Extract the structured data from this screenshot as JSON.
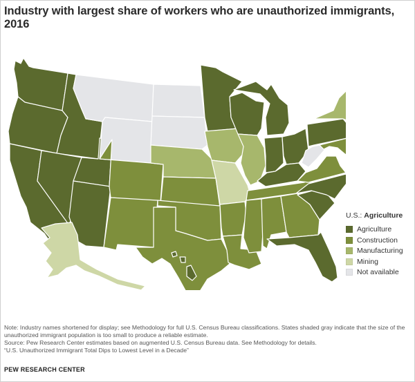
{
  "title": "Industry with largest share of workers who are unauthorized immigrants, 2016",
  "legend": {
    "header_prefix": "U.S.: ",
    "header_value": "Agriculture",
    "items": [
      {
        "label": "Agriculture",
        "color": "#5b6a2e"
      },
      {
        "label": "Construction",
        "color": "#7e8f3c"
      },
      {
        "label": "Manufacturing",
        "color": "#a7b76c"
      },
      {
        "label": "Mining",
        "color": "#ced7a6"
      },
      {
        "label": "Not available",
        "color": "#e4e5e8"
      }
    ]
  },
  "states": {
    "WA": "Agriculture",
    "OR": "Agriculture",
    "CA": "Agriculture",
    "ID": "Agriculture",
    "NV": "Agriculture",
    "UT": "Agriculture",
    "AZ": "Agriculture",
    "MT": "Not available",
    "WY": "Not available",
    "ND": "Not available",
    "SD": "Not available",
    "CO": "Construction",
    "NM": "Construction",
    "NE": "Manufacturing",
    "KS": "Construction",
    "OK": "Construction",
    "TX": "Construction",
    "MN": "Agriculture",
    "IA": "Manufacturing",
    "MO": "Mining",
    "AR": "Construction",
    "LA": "Construction",
    "WI": "Agriculture",
    "IL": "Manufacturing",
    "MI": "Agriculture",
    "IN": "Agriculture",
    "OH": "Agriculture",
    "KY": "Agriculture",
    "TN": "Construction",
    "MS": "Construction",
    "AL": "Construction",
    "GA": "Construction",
    "FL": "Agriculture",
    "SC": "Agriculture",
    "NC": "Agriculture",
    "VA": "Construction",
    "WV": "Not available",
    "PA": "Agriculture",
    "NY": "Manufacturing",
    "MD": "Construction",
    "DE": "Construction",
    "NJ": "Agriculture",
    "CT": "Construction",
    "RI": "Construction",
    "MA": "Construction",
    "VT": "Not available",
    "NH": "Manufacturing",
    "ME": "Not available",
    "AK": "Mining",
    "HI": "Agriculture"
  },
  "notes": {
    "note": "Note: Industry names shortened for display; see Methodology for full U.S. Census Bureau classifications. States shaded gray indicate that the size of the unauthorized immigrant population is too small to produce a reliable estimate.",
    "source": "Source: Pew Research Center estimates based on augmented U.S. Census Bureau data. See Methodology for details.",
    "report": "“U.S. Unauthorized Immigrant Total Dips to Lowest Level in a Decade”"
  },
  "credit": "PEW RESEARCH CENTER"
}
